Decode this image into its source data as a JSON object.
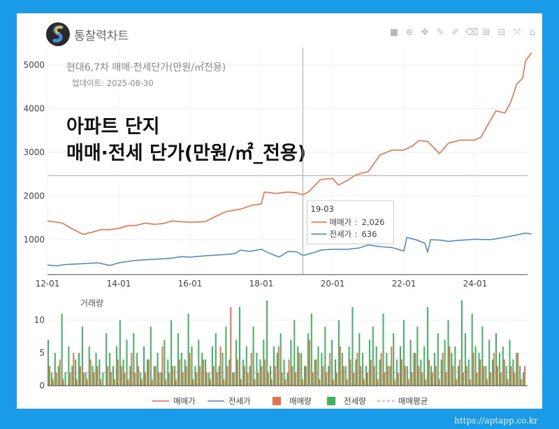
{
  "brand": "통찰력차트",
  "url": "https://aptapp.co.kr",
  "toolbar_icons": [
    "camera-icon",
    "zoom-icon",
    "pan-icon",
    "draw-line-icon",
    "draw-freehand-icon",
    "erase-icon",
    "zoom-in-icon",
    "zoom-out-icon",
    "autoscale-icon",
    "home-icon"
  ],
  "overlay": {
    "line1": "아파트 단지",
    "line2": "매매·전세 단가(만원/㎡_전용)"
  },
  "chart_data": [
    {
      "type": "line",
      "title": "현대6,7차 매매·전세단가(만원/㎡전용)",
      "subtitle": "업데이트: 2025-08-30",
      "x_ticks": [
        "12-01",
        "14-01",
        "16-01",
        "18-01",
        "20-01",
        "22-01",
        "24-01"
      ],
      "ylim": [
        200,
        5400
      ],
      "y_ticks": [
        1000,
        2000,
        3000,
        4000,
        5000
      ],
      "hover": {
        "date": "19-03",
        "items": [
          {
            "label": "매매가",
            "value": "2,026"
          },
          {
            "label": "전세가",
            "value": "636"
          }
        ]
      },
      "series": [
        {
          "name": "매매가",
          "color": "#f0673f",
          "points": [
            [
              "12-01",
              1430
            ],
            [
              "12-06",
              1380
            ],
            [
              "12-09",
              1260
            ],
            [
              "13-01",
              1120
            ],
            [
              "13-04",
              1170
            ],
            [
              "13-07",
              1230
            ],
            [
              "13-10",
              1230
            ],
            [
              "14-01",
              1260
            ],
            [
              "14-04",
              1320
            ],
            [
              "14-07",
              1330
            ],
            [
              "14-10",
              1380
            ],
            [
              "15-01",
              1350
            ],
            [
              "15-04",
              1370
            ],
            [
              "15-07",
              1430
            ],
            [
              "15-10",
              1410
            ],
            [
              "16-01",
              1400
            ],
            [
              "16-06",
              1410
            ],
            [
              "16-09",
              1510
            ],
            [
              "17-01",
              1640
            ],
            [
              "17-06",
              1700
            ],
            [
              "17-10",
              1790
            ],
            [
              "18-01",
              1820
            ],
            [
              "18-02",
              2090
            ],
            [
              "18-06",
              2060
            ],
            [
              "18-10",
              2090
            ],
            [
              "19-01",
              2070
            ],
            [
              "19-03",
              2026
            ],
            [
              "19-05",
              2100
            ],
            [
              "19-09",
              2380
            ],
            [
              "20-01",
              2400
            ],
            [
              "20-03",
              2250
            ],
            [
              "20-06",
              2360
            ],
            [
              "20-09",
              2490
            ],
            [
              "21-01",
              2560
            ],
            [
              "21-05",
              2940
            ],
            [
              "21-09",
              3050
            ],
            [
              "22-01",
              3050
            ],
            [
              "22-04",
              3150
            ],
            [
              "22-06",
              3270
            ],
            [
              "22-09",
              3250
            ],
            [
              "23-01",
              2970
            ],
            [
              "23-04",
              3210
            ],
            [
              "23-08",
              3280
            ],
            [
              "24-01",
              3280
            ],
            [
              "24-03",
              3350
            ],
            [
              "24-06",
              3720
            ],
            [
              "24-08",
              3950
            ],
            [
              "24-11",
              3900
            ],
            [
              "25-01",
              4150
            ],
            [
              "25-03",
              4560
            ],
            [
              "25-05",
              4700
            ],
            [
              "25-06",
              5100
            ],
            [
              "25-08",
              5280
            ]
          ]
        },
        {
          "name": "전세가",
          "color": "#4a86c6",
          "points": [
            [
              "12-01",
              420
            ],
            [
              "12-04",
              400
            ],
            [
              "12-07",
              430
            ],
            [
              "13-01",
              450
            ],
            [
              "13-06",
              470
            ],
            [
              "13-10",
              410
            ],
            [
              "14-01",
              470
            ],
            [
              "14-06",
              520
            ],
            [
              "14-10",
              540
            ],
            [
              "15-01",
              550
            ],
            [
              "15-06",
              570
            ],
            [
              "15-10",
              610
            ],
            [
              "16-01",
              600
            ],
            [
              "16-06",
              630
            ],
            [
              "17-01",
              660
            ],
            [
              "17-04",
              680
            ],
            [
              "17-06",
              760
            ],
            [
              "17-09",
              730
            ],
            [
              "18-01",
              780
            ],
            [
              "18-04",
              680
            ],
            [
              "18-07",
              600
            ],
            [
              "18-10",
              730
            ],
            [
              "19-01",
              720
            ],
            [
              "19-03",
              636
            ],
            [
              "19-06",
              690
            ],
            [
              "19-09",
              760
            ],
            [
              "20-01",
              780
            ],
            [
              "20-06",
              780
            ],
            [
              "20-10",
              810
            ],
            [
              "21-01",
              880
            ],
            [
              "21-05",
              840
            ],
            [
              "21-09",
              820
            ],
            [
              "22-01",
              740
            ],
            [
              "22-02",
              1050
            ],
            [
              "22-05",
              1000
            ],
            [
              "22-08",
              920
            ],
            [
              "22-09",
              720
            ],
            [
              "22-10",
              1000
            ],
            [
              "23-01",
              990
            ],
            [
              "23-04",
              960
            ],
            [
              "23-07",
              980
            ],
            [
              "24-01",
              1010
            ],
            [
              "24-06",
              1000
            ],
            [
              "24-09",
              1030
            ],
            [
              "25-01",
              1080
            ],
            [
              "25-06",
              1150
            ],
            [
              "25-08",
              1130
            ]
          ]
        }
      ]
    },
    {
      "type": "bar",
      "title": "거래량",
      "ylim": [
        0,
        13
      ],
      "y_ticks": [
        0,
        5,
        10
      ],
      "series": [
        {
          "name": "매매량",
          "color": "#e5734e",
          "values": [
            3,
            1,
            2,
            4,
            1,
            0,
            2,
            5,
            1,
            3,
            2,
            1,
            4,
            2,
            3,
            1,
            0,
            3,
            2,
            1,
            4,
            3,
            2,
            1,
            5,
            2,
            3,
            1,
            2,
            4,
            1,
            3,
            2,
            6,
            1,
            2,
            3,
            1,
            4,
            2,
            3,
            5,
            1,
            2,
            3,
            4,
            2,
            1,
            3,
            2,
            6,
            1,
            3,
            12,
            2,
            4,
            1,
            3,
            2,
            5,
            1,
            2,
            3,
            4,
            2,
            1,
            3,
            6,
            2,
            1,
            4,
            3,
            2,
            5,
            1,
            3,
            7,
            2,
            4,
            1,
            3,
            2,
            5,
            1,
            2,
            6,
            3,
            1,
            4,
            2,
            5,
            3,
            1,
            2,
            4,
            3,
            1,
            5,
            2,
            3,
            6,
            1,
            2,
            4,
            3,
            1,
            2,
            5,
            3,
            2,
            1,
            4,
            2,
            3,
            1,
            5,
            2,
            6,
            3,
            1,
            4,
            2,
            3,
            1,
            5,
            2,
            4,
            3,
            1,
            2,
            5,
            3,
            2,
            4,
            1,
            3,
            2,
            5,
            1,
            3
          ]
        },
        {
          "name": "전세량",
          "color": "#3cb55c",
          "values": [
            7,
            2,
            5,
            3,
            11,
            2,
            6,
            3,
            4,
            5,
            9,
            2,
            6,
            3,
            5,
            4,
            2,
            8,
            5,
            3,
            6,
            10,
            4,
            7,
            3,
            8,
            5,
            2,
            6,
            4,
            9,
            3,
            5,
            2,
            7,
            4,
            10,
            3,
            8,
            5,
            4,
            11,
            6,
            3,
            7,
            5,
            4,
            2,
            6,
            8,
            3,
            5,
            9,
            4,
            2,
            7,
            12,
            4,
            6,
            3,
            9,
            5,
            4,
            7,
            13,
            3,
            6,
            5,
            8,
            4,
            2,
            7,
            10,
            6,
            5,
            3,
            8,
            11,
            4,
            6,
            5,
            9,
            3,
            7,
            4,
            10,
            5,
            3,
            6,
            12,
            4,
            8,
            5,
            3,
            7,
            9,
            6,
            4,
            11,
            5,
            3,
            8,
            4,
            6,
            10,
            3,
            7,
            5,
            9,
            4,
            6,
            12,
            3,
            5,
            8,
            4,
            7,
            10,
            5,
            6,
            3,
            13,
            8,
            4,
            11,
            6,
            5,
            9,
            3,
            7,
            4,
            8,
            5,
            6,
            3,
            7,
            4,
            5,
            3,
            2
          ]
        },
        {
          "name": "매매평균",
          "color": "#c678c8",
          "dash": true,
          "values": []
        }
      ]
    }
  ]
}
